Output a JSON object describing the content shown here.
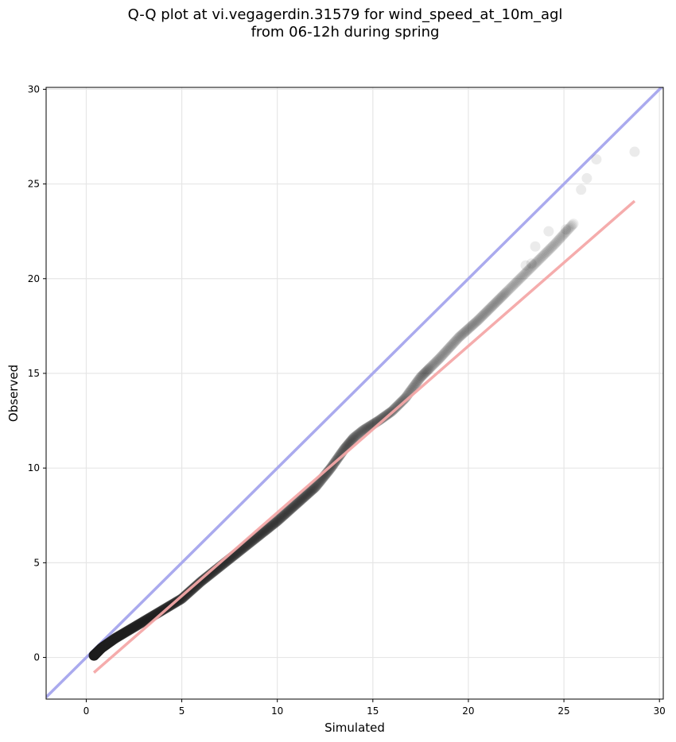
{
  "chart_data": {
    "type": "scatter",
    "title_line1": "Q-Q plot at vi.vegagerdin.31579 for wind_speed_at_10m_agl",
    "title_line2": "from 06-12h during spring",
    "xlabel": "Simulated",
    "ylabel": "Observed",
    "xlim": [
      -2.1,
      30.2
    ],
    "ylim": [
      -2.2,
      30.1
    ],
    "xticks": [
      0,
      5,
      10,
      15,
      20,
      25,
      30
    ],
    "yticks": [
      0,
      5,
      10,
      15,
      20,
      25,
      30
    ],
    "grid": true,
    "colors": {
      "points": "#222222",
      "identity_line": "#aaaaee",
      "fit_line": "#f4a8a8"
    },
    "identity_line": {
      "x": [
        -2.1,
        30.2
      ],
      "y": [
        -2.1,
        30.2
      ]
    },
    "fit_line": {
      "x": [
        0.4,
        28.7
      ],
      "y": [
        -0.8,
        24.1
      ]
    },
    "qq_curve": {
      "x": [
        0.4,
        0.8,
        1.5,
        2.5,
        3.5,
        5,
        6,
        7,
        8,
        9,
        10,
        11,
        12,
        12.8,
        13.5,
        14,
        14.5,
        15.3,
        16,
        16.7,
        17.5,
        18.5,
        19.5,
        20.5,
        21.5,
        22.5,
        23.5,
        24.5,
        25.5,
        26.2,
        26.7
      ],
      "y": [
        0.1,
        0.5,
        1.0,
        1.6,
        2.2,
        3.1,
        4.0,
        4.8,
        5.6,
        6.4,
        7.2,
        8.1,
        9.0,
        10.0,
        11.0,
        11.6,
        12.0,
        12.5,
        13.0,
        13.7,
        14.8,
        15.8,
        16.9,
        17.8,
        18.8,
        19.8,
        20.8,
        21.8,
        22.9,
        24.3,
        26.3
      ]
    },
    "outliers": [
      {
        "x": 28.7,
        "y": 26.7
      },
      {
        "x": 26.7,
        "y": 26.3
      },
      {
        "x": 26.2,
        "y": 25.3
      },
      {
        "x": 25.9,
        "y": 24.7
      },
      {
        "x": 25.1,
        "y": 22.6
      },
      {
        "x": 23.3,
        "y": 20.8
      },
      {
        "x": 23.0,
        "y": 20.7
      },
      {
        "x": 23.5,
        "y": 21.7
      },
      {
        "x": 24.2,
        "y": 22.5
      }
    ]
  }
}
